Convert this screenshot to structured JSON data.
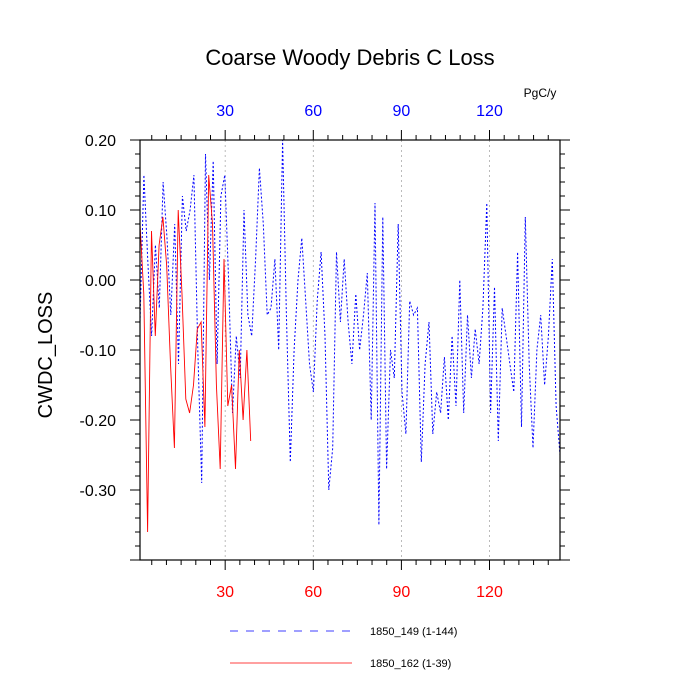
{
  "chart_data": {
    "type": "line",
    "title": "Coarse Woody Debris C Loss",
    "ylabel": "CWDC_LOSS",
    "xlabel": "",
    "top_axis_units": "PgC/y",
    "xlim": [
      1,
      144
    ],
    "ylim": [
      -0.4,
      0.2
    ],
    "y_ticks": [
      0.2,
      0.1,
      0.0,
      -0.1,
      -0.2,
      -0.3
    ],
    "y_tick_labels": [
      "0.20",
      "0.10",
      "0.00",
      "-0.10",
      "-0.20",
      "-0.30"
    ],
    "x_ticks": [
      30,
      60,
      90,
      120
    ],
    "x_tick_labels": [
      "30",
      "60",
      "90",
      "120"
    ],
    "grid_x": true,
    "colors": {
      "series_1": "#0000ff",
      "series_2": "#ff0000",
      "bottom_ticks": "#ff0000",
      "top_ticks": "#0000ff"
    },
    "legend_position": "bottom",
    "series": [
      {
        "name": "1850_149 (1-144)",
        "color": "#0000ff",
        "style": "dashed",
        "values": [
          -0.06,
          0.15,
          0.03,
          -0.08,
          0.05,
          -0.04,
          0.14,
          0.06,
          -0.05,
          0.08,
          -0.12,
          0.12,
          0.07,
          0.1,
          0.15,
          -0.1,
          -0.29,
          0.18,
          0.0,
          0.17,
          -0.12,
          0.12,
          0.15,
          0.0,
          -0.19,
          -0.08,
          -0.14,
          0.1,
          -0.05,
          -0.08,
          0.03,
          0.16,
          0.08,
          -0.05,
          -0.04,
          0.03,
          -0.1,
          0.2,
          -0.05,
          -0.26,
          -0.1,
          0.0,
          0.06,
          -0.03,
          -0.12,
          -0.16,
          -0.03,
          0.04,
          -0.08,
          -0.3,
          -0.24,
          0.04,
          -0.06,
          0.03,
          -0.06,
          -0.12,
          -0.02,
          -0.1,
          -0.05,
          0.01,
          -0.2,
          0.11,
          -0.35,
          0.09,
          -0.27,
          -0.1,
          -0.14,
          0.08,
          -0.16,
          -0.22,
          -0.03,
          -0.05,
          -0.04,
          -0.26,
          -0.12,
          -0.06,
          -0.22,
          -0.16,
          -0.19,
          -0.11,
          -0.2,
          -0.08,
          -0.18,
          0.0,
          -0.19,
          -0.05,
          -0.14,
          -0.07,
          -0.12,
          -0.04,
          0.11,
          -0.19,
          -0.01,
          -0.23,
          -0.04,
          -0.08,
          -0.12,
          -0.16,
          0.04,
          -0.21,
          0.09,
          -0.12,
          -0.24,
          -0.1,
          -0.05,
          -0.15,
          -0.08,
          0.03,
          -0.18,
          -0.25
        ]
      },
      {
        "name": "1850_162 (1-39)",
        "color": "#ff0000",
        "style": "solid",
        "values": [
          0.08,
          -0.02,
          -0.36,
          0.07,
          -0.08,
          0.05,
          0.09,
          0.02,
          -0.12,
          -0.24,
          0.1,
          -0.02,
          -0.17,
          -0.19,
          -0.15,
          -0.07,
          -0.06,
          -0.21,
          0.15,
          0.08,
          -0.15,
          -0.27,
          0.03,
          -0.18,
          -0.15,
          -0.27,
          -0.1,
          -0.2,
          -0.1,
          -0.23
        ]
      }
    ]
  }
}
